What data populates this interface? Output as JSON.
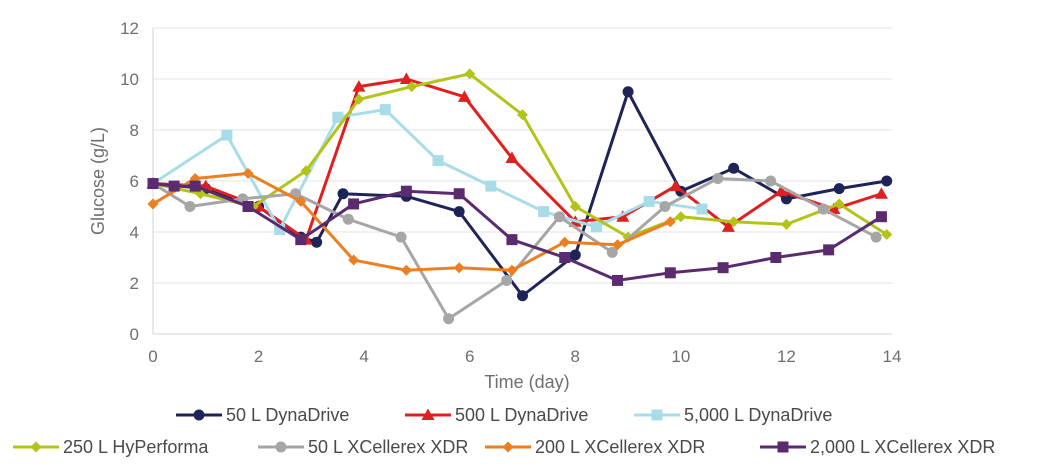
{
  "chart_data": {
    "type": "line",
    "title": "",
    "xlabel": "Time (day)",
    "ylabel": "Glucose (g/L)",
    "xlim": [
      0,
      14
    ],
    "ylim": [
      0,
      12
    ],
    "xticks": [
      0,
      2,
      4,
      6,
      8,
      10,
      12,
      14
    ],
    "yticks": [
      0,
      2,
      4,
      6,
      8,
      10,
      12
    ],
    "legend_position": "bottom",
    "series": [
      {
        "name": "50 L DynaDrive",
        "color": "#1f2456",
        "marker": "circle",
        "x": [
          0,
          1,
          2,
          2.8,
          3.1,
          3.6,
          4.8,
          5.8,
          7.0,
          8.0,
          9.0,
          10.0,
          11.0,
          12.0,
          13.0,
          13.9
        ],
        "y": [
          5.9,
          5.7,
          5.0,
          3.8,
          3.6,
          5.5,
          5.4,
          4.8,
          1.5,
          3.1,
          9.5,
          5.6,
          6.5,
          5.3,
          5.7,
          6.0
        ]
      },
      {
        "name": "500 L DynaDrive",
        "color": "#e02020",
        "marker": "triangle",
        "x": [
          0,
          1,
          2,
          2.9,
          3.9,
          4.8,
          5.9,
          6.8,
          8.0,
          8.9,
          9.9,
          10.9,
          11.9,
          12.9,
          13.8
        ],
        "y": [
          5.9,
          5.8,
          5.0,
          3.7,
          9.7,
          10.0,
          9.3,
          6.9,
          4.4,
          4.6,
          5.8,
          4.2,
          5.6,
          4.9,
          5.5
        ]
      },
      {
        "name": "5,000 L DynaDrive",
        "color": "#a8dce8",
        "marker": "square",
        "x": [
          0,
          1.4,
          2.4,
          3.5,
          4.4,
          5.4,
          6.4,
          7.4,
          8.4,
          9.4,
          10.4
        ],
        "y": [
          5.9,
          7.8,
          4.1,
          8.5,
          8.8,
          6.8,
          5.8,
          4.8,
          4.2,
          5.2,
          4.9
        ]
      },
      {
        "name": "250 L HyPerforma",
        "color": "#b3c418",
        "marker": "diamond",
        "x": [
          0,
          0.9,
          1.9,
          2.9,
          3.9,
          4.9,
          6.0,
          7.0,
          8.0,
          9.0,
          10.0,
          11.0,
          12.0,
          13.0,
          13.9
        ],
        "y": [
          5.9,
          5.5,
          5.0,
          6.4,
          9.2,
          9.7,
          10.2,
          8.6,
          5.0,
          3.8,
          4.6,
          4.4,
          4.3,
          5.1,
          3.9
        ]
      },
      {
        "name": "50 L XCellerex XDR",
        "color": "#a6a6a6",
        "marker": "circle",
        "x": [
          0,
          0.7,
          1.7,
          2.7,
          3.7,
          4.7,
          5.6,
          6.7,
          7.7,
          8.7,
          9.7,
          10.7,
          11.7,
          12.7,
          13.7
        ],
        "y": [
          5.9,
          5.0,
          5.3,
          5.5,
          4.5,
          3.8,
          0.6,
          2.1,
          4.6,
          3.2,
          5.0,
          6.1,
          6.0,
          4.9,
          3.8
        ]
      },
      {
        "name": "200 L XCellerex XDR",
        "color": "#ec7f22",
        "marker": "diamond",
        "x": [
          0,
          0.8,
          1.8,
          2.8,
          3.8,
          4.8,
          5.8,
          6.8,
          7.8,
          8.8,
          9.8
        ],
        "y": [
          5.1,
          6.1,
          6.3,
          5.2,
          2.9,
          2.5,
          2.6,
          2.5,
          3.6,
          3.5,
          4.4
        ]
      },
      {
        "name": "2,000 L XCellerex XDR",
        "color": "#5a2b6e",
        "marker": "square",
        "x": [
          0,
          0.4,
          0.8,
          1.8,
          2.8,
          3.8,
          4.8,
          5.8,
          6.8,
          7.8,
          8.8,
          9.8,
          10.8,
          11.8,
          12.8,
          13.8
        ],
        "y": [
          5.9,
          5.8,
          5.8,
          5.0,
          3.7,
          5.1,
          5.6,
          5.5,
          3.7,
          3.0,
          2.1,
          2.4,
          2.6,
          3.0,
          3.3,
          4.6
        ]
      }
    ]
  }
}
